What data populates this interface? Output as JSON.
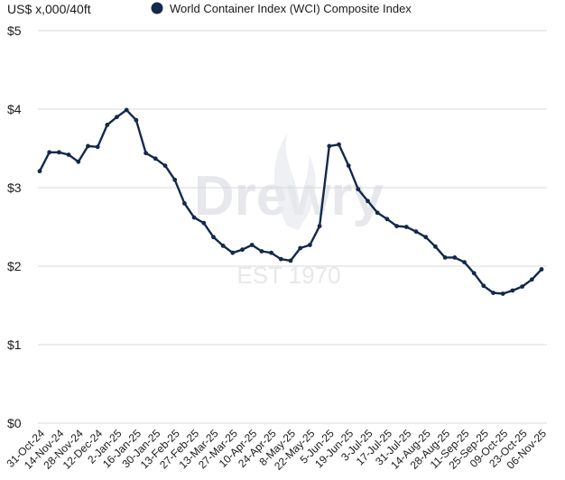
{
  "chart_data": {
    "type": "line",
    "unit_label": "US$ x,000/40ft",
    "legend": {
      "label": "World Container Index (WCI) Composite Index",
      "placement": "top"
    },
    "series": [
      {
        "name": "World Container Index (WCI) Composite Index",
        "color": "#13294b",
        "values": [
          3.21,
          3.45,
          3.45,
          3.42,
          3.33,
          3.53,
          3.52,
          3.8,
          3.9,
          3.99,
          3.86,
          3.44,
          3.37,
          3.28,
          3.1,
          2.8,
          2.62,
          2.55,
          2.37,
          2.26,
          2.17,
          2.21,
          2.27,
          2.19,
          2.17,
          2.09,
          2.07,
          2.23,
          2.27,
          2.51,
          3.53,
          3.55,
          3.28,
          2.98,
          2.83,
          2.68,
          2.6,
          2.51,
          2.5,
          2.44,
          2.37,
          2.25,
          2.11,
          2.11,
          2.05,
          1.91,
          1.75,
          1.66,
          1.65,
          1.69,
          1.74,
          1.83,
          1.96
        ]
      }
    ],
    "x_tick_labels": [
      "31-Oct-24",
      "14-Nov-24",
      "28-Nov-24",
      "12-Dec-24",
      "2-Jan-25",
      "16-Jan-25",
      "30-Jan-25",
      "13-Feb-25",
      "27-Feb-25",
      "13-Mar-25",
      "27-Mar-25",
      "10-Apr-25",
      "24-Apr-25",
      "8-May-25",
      "22-May-25",
      "5-Jun-25",
      "19-Jun-25",
      "3-Jul-25",
      "17-Jul-25",
      "31-Jul-25",
      "14-Aug-25",
      "28-Aug-25",
      "11-Sep-25",
      "25-Sep-25",
      "09-Oct-25",
      "23-Oct-25",
      "06-Nov-25"
    ],
    "y_ticks": [
      {
        "value": 0,
        "label": "$0"
      },
      {
        "value": 1,
        "label": "$1"
      },
      {
        "value": 2,
        "label": "$2"
      },
      {
        "value": 3,
        "label": "$3"
      },
      {
        "value": 4,
        "label": "$4"
      },
      {
        "value": 5,
        "label": "$5"
      }
    ],
    "ylim": [
      0,
      5
    ],
    "grid": "horizontal",
    "watermark": {
      "brand": "Drewry",
      "tagline": "EST 1970"
    }
  }
}
